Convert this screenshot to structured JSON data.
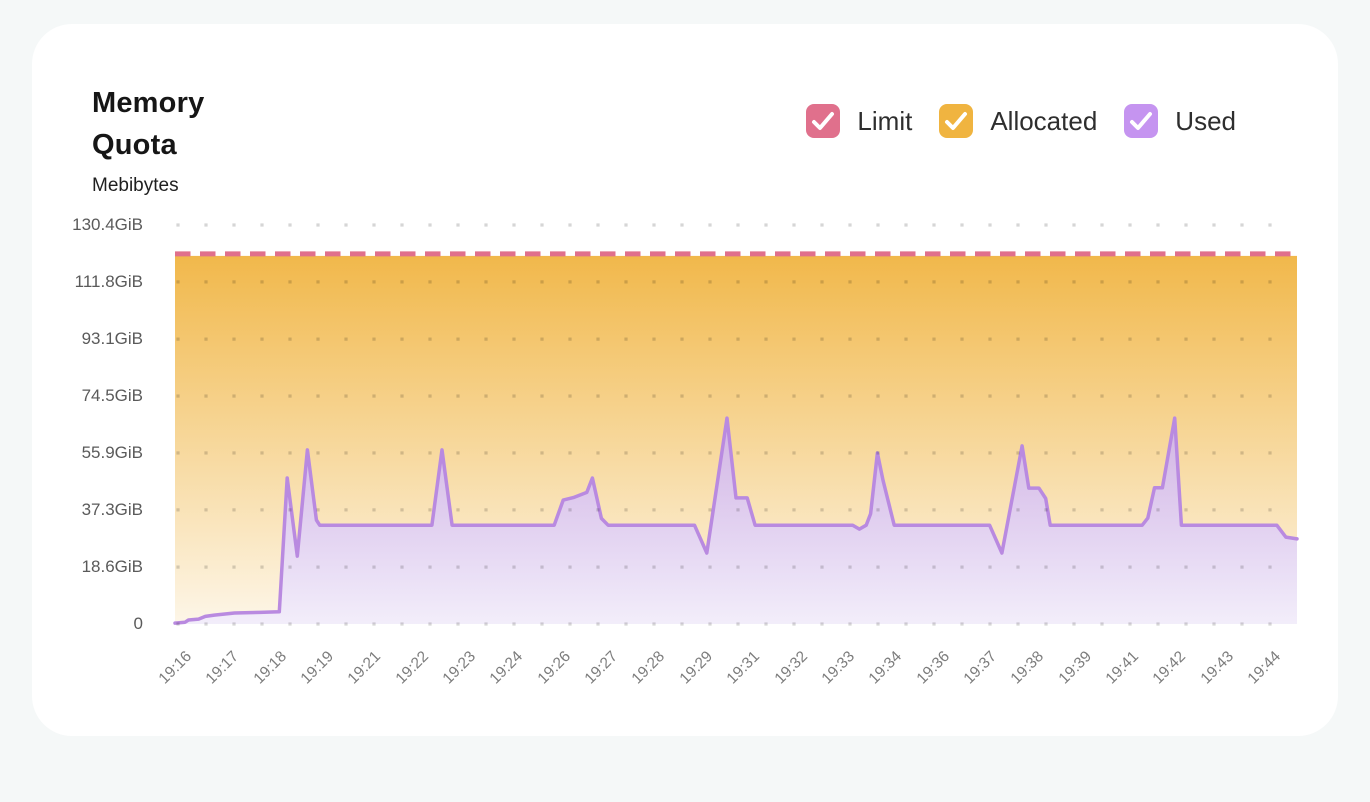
{
  "page": {
    "background_color": "#f5f8f8",
    "card_color": "#ffffff"
  },
  "header": {
    "title": "Memory Quota",
    "subtitle": "Mebibytes"
  },
  "legend": [
    {
      "label": "Limit",
      "color": "#e0708c",
      "checked": true
    },
    {
      "label": "Allocated",
      "color": "#f0b440",
      "checked": true
    },
    {
      "label": "Used",
      "color": "#c594f0",
      "checked": true
    }
  ],
  "chart_data": {
    "type": "area",
    "title": "Memory Quota",
    "ylabel": "Mebibytes",
    "unit": "GiB",
    "ylim": [
      0,
      130.4
    ],
    "grid": "dotted",
    "legend_position": "top-right",
    "y_ticks": [
      {
        "value": 130.4,
        "label": "130.4GiB"
      },
      {
        "value": 111.8,
        "label": "111.8GiB"
      },
      {
        "value": 93.1,
        "label": "93.1GiB"
      },
      {
        "value": 74.5,
        "label": "74.5GiB"
      },
      {
        "value": 55.9,
        "label": "55.9GiB"
      },
      {
        "value": 37.3,
        "label": "37.3GiB"
      },
      {
        "value": 18.6,
        "label": "18.6GiB"
      },
      {
        "value": 0,
        "label": "0"
      }
    ],
    "x_ticks": [
      "19:16",
      "19:17",
      "19:18",
      "19:19",
      "19:21",
      "19:22",
      "19:23",
      "19:24",
      "19:26",
      "19:27",
      "19:28",
      "19:29",
      "19:31",
      "19:32",
      "19:33",
      "19:34",
      "19:36",
      "19:37",
      "19:38",
      "19:39",
      "19:41",
      "19:42",
      "19:43",
      "19:44"
    ],
    "series": [
      {
        "name": "Limit",
        "style": "dashed-line",
        "color": "#e0708c",
        "value_gib": 120.3
      },
      {
        "name": "Allocated",
        "style": "area",
        "color": "#f0b440",
        "gradient": [
          "#f1b84b",
          "#fdf6e8"
        ],
        "value_gib": 120.3
      },
      {
        "name": "Used",
        "style": "area-line",
        "line_color": "#b98ae0",
        "gradient": [
          "rgba(203,174,240,0.85)",
          "rgba(242,237,251,0.95)"
        ],
        "points_frac_gib": [
          [
            0.0,
            0.3
          ],
          [
            0.009,
            0.6
          ],
          [
            0.012,
            1.3
          ],
          [
            0.021,
            1.6
          ],
          [
            0.027,
            2.5
          ],
          [
            0.035,
            2.9
          ],
          [
            0.053,
            3.6
          ],
          [
            0.076,
            3.8
          ],
          [
            0.093,
            4.0
          ],
          [
            0.1,
            47.7
          ],
          [
            0.109,
            22.2
          ],
          [
            0.118,
            56.9
          ],
          [
            0.126,
            34.0
          ],
          [
            0.129,
            32.3
          ],
          [
            0.229,
            32.3
          ],
          [
            0.238,
            56.9
          ],
          [
            0.247,
            32.3
          ],
          [
            0.338,
            32.3
          ],
          [
            0.346,
            40.5
          ],
          [
            0.355,
            41.3
          ],
          [
            0.367,
            43.0
          ],
          [
            0.372,
            47.7
          ],
          [
            0.38,
            34.5
          ],
          [
            0.386,
            32.3
          ],
          [
            0.463,
            32.3
          ],
          [
            0.474,
            23.2
          ],
          [
            0.492,
            67.3
          ],
          [
            0.5,
            41.2
          ],
          [
            0.51,
            41.2
          ],
          [
            0.517,
            32.3
          ],
          [
            0.604,
            32.3
          ],
          [
            0.61,
            31.0
          ],
          [
            0.616,
            32.3
          ],
          [
            0.62,
            36.0
          ],
          [
            0.626,
            55.9
          ],
          [
            0.631,
            47.0
          ],
          [
            0.641,
            32.3
          ],
          [
            0.726,
            32.3
          ],
          [
            0.737,
            23.2
          ],
          [
            0.755,
            58.2
          ],
          [
            0.761,
            44.4
          ],
          [
            0.77,
            44.4
          ],
          [
            0.776,
            41.0
          ],
          [
            0.78,
            32.3
          ],
          [
            0.862,
            32.3
          ],
          [
            0.867,
            34.6
          ],
          [
            0.873,
            44.5
          ],
          [
            0.88,
            44.5
          ],
          [
            0.891,
            67.3
          ],
          [
            0.897,
            32.3
          ],
          [
            0.982,
            32.3
          ],
          [
            0.99,
            28.4
          ],
          [
            1.0,
            27.8
          ]
        ]
      }
    ],
    "grid_dot_color": "rgba(0,0,0,0.16)",
    "axis_label_color": "#5a5a5a",
    "x_label_color": "#7c7c7c"
  }
}
